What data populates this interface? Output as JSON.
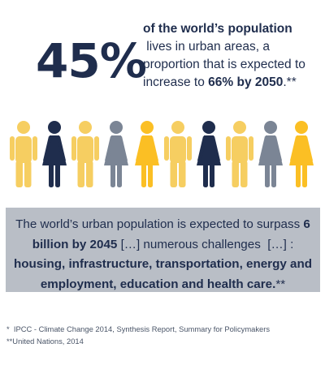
{
  "stat": {
    "big_number": "45%",
    "line1": "of the world’s population",
    "line2": " lives in urban areas, a",
    "line3": "proportion that is expected to",
    "line4_prefix": "increase to ",
    "line4_highlight": "66% by 2050",
    "line4_suffix": ".**"
  },
  "people": {
    "count": 10,
    "highlighted_count": 5,
    "colors": {
      "orange": "#fbbf24",
      "light_yellow": "#f6ce61",
      "navy": "#1f2d4d",
      "gray": "#7b8595"
    },
    "figures": [
      {
        "icon": "man-icon",
        "color": "#f6ce61"
      },
      {
        "icon": "woman-icon",
        "color": "#1f2d4d"
      },
      {
        "icon": "man-icon",
        "color": "#f6ce61"
      },
      {
        "icon": "woman-icon",
        "color": "#7b8595"
      },
      {
        "icon": "woman-icon",
        "color": "#fbbf24"
      },
      {
        "icon": "man-icon",
        "color": "#f6ce61"
      },
      {
        "icon": "woman-icon",
        "color": "#1f2d4d"
      },
      {
        "icon": "man-icon",
        "color": "#f6ce61"
      },
      {
        "icon": "woman-icon",
        "color": "#7b8595"
      },
      {
        "icon": "woman-icon",
        "color": "#fbbf24"
      }
    ]
  },
  "callout": {
    "l1_text": "The world’s urban population is expected to surpass ",
    "l1_bold": "6",
    "l2_bold": "billion by 2045",
    "l2_text": " […] numerous challenges  […] :",
    "l3_bold": "housing, infrastructure, transportation, energy and",
    "l4_bold": "employment, education and health care.",
    "l4_suffix": "**"
  },
  "footnotes": {
    "note1": "*  IPCC - Climate Change 2014, Synthesis Report, Summary for Policymakers",
    "note2": "**United Nations, 2014"
  }
}
